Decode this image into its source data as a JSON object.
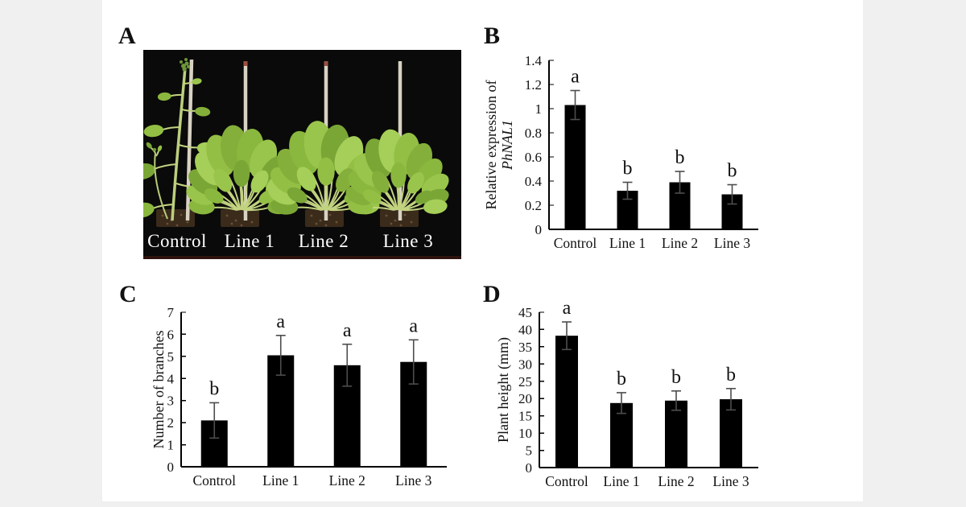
{
  "page": {
    "background": "#f0f0f0",
    "canvas_color": "#ffffff"
  },
  "figure": {
    "panel_labels": [
      "A",
      "B",
      "C",
      "D"
    ]
  },
  "photo": {
    "background": "#0a0a0a",
    "label_color": "#ffffff",
    "labels": [
      "Control",
      "Line 1",
      "Line 2",
      "Line 3"
    ]
  },
  "chart_data": [
    {
      "id": "B",
      "type": "bar",
      "title": "",
      "categories": [
        "Control",
        "Line 1",
        "Line 2",
        "Line 3"
      ],
      "values": [
        1.03,
        0.32,
        0.39,
        0.29
      ],
      "errors": [
        0.12,
        0.07,
        0.09,
        0.08
      ],
      "sig_letters": [
        "a",
        "b",
        "b",
        "b"
      ],
      "ylabel_lines": [
        "Relative expression of",
        "PhNAL1"
      ],
      "ylabel_italic_index": 1,
      "xlabel": "",
      "ylim": [
        0,
        1.4
      ],
      "yticks": [
        0,
        0.2,
        0.4,
        0.6,
        0.8,
        1,
        1.2,
        1.4
      ],
      "ytick_labels": [
        "0",
        "0.2",
        "0.4",
        "0.6",
        "0.8",
        "1",
        "1.2",
        "1.4"
      ],
      "bar_color": "#000000",
      "error_color": "#4d4d4d",
      "grid": false,
      "legend": "none"
    },
    {
      "id": "C",
      "type": "bar",
      "title": "",
      "categories": [
        "Control",
        "Line 1",
        "Line 2",
        "Line 3"
      ],
      "values": [
        2.1,
        5.05,
        4.6,
        4.75
      ],
      "errors": [
        0.8,
        0.9,
        0.95,
        1.0
      ],
      "sig_letters": [
        "b",
        "a",
        "a",
        "a"
      ],
      "ylabel_lines": [
        "Number of branches"
      ],
      "ylabel_italic_index": -1,
      "xlabel": "",
      "ylim": [
        0,
        7
      ],
      "yticks": [
        0,
        1,
        2,
        3,
        4,
        5,
        6,
        7
      ],
      "ytick_labels": [
        "0",
        "1",
        "2",
        "3",
        "4",
        "5",
        "6",
        "7"
      ],
      "bar_color": "#000000",
      "error_color": "#4d4d4d",
      "grid": false,
      "legend": "none"
    },
    {
      "id": "D",
      "type": "bar",
      "title": "",
      "categories": [
        "Control",
        "Line 1",
        "Line 2",
        "Line 3"
      ],
      "values": [
        38.2,
        18.7,
        19.4,
        19.8
      ],
      "errors": [
        4.0,
        3.0,
        2.8,
        3.1
      ],
      "sig_letters": [
        "a",
        "b",
        "b",
        "b"
      ],
      "ylabel_lines": [
        "Plant height (mm)"
      ],
      "ylabel_italic_index": -1,
      "xlabel": "",
      "ylim": [
        0,
        45
      ],
      "yticks": [
        0,
        5,
        10,
        15,
        20,
        25,
        30,
        35,
        40,
        45
      ],
      "ytick_labels": [
        "0",
        "5",
        "10",
        "15",
        "20",
        "25",
        "30",
        "35",
        "40",
        "45"
      ],
      "bar_color": "#000000",
      "error_color": "#4d4d4d",
      "grid": false,
      "legend": "none"
    }
  ]
}
